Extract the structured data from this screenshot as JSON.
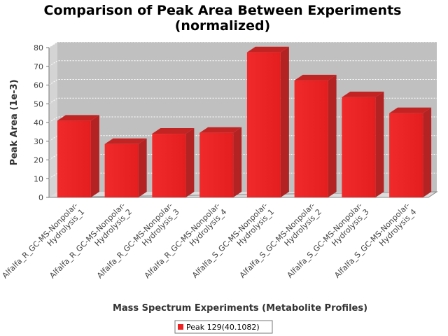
{
  "chart_data": {
    "type": "bar",
    "title": [
      "Comparison of Peak Area Between Experiments",
      "(normalized)"
    ],
    "xlabel": "Mass Spectrum Experiments (Metabolite Profiles)",
    "ylabel": "Peak Area (1e-3)",
    "ylim": [
      0,
      80
    ],
    "yticks": [
      0,
      10,
      20,
      30,
      40,
      50,
      60,
      70,
      80
    ],
    "grid": true,
    "legend_position": "bottom",
    "categories": [
      [
        "Alfalfa_R_GC-MS-Nonpolar-",
        "Hydrolysis_1"
      ],
      [
        "Alfalfa_R_GC-MS-Nonpolar-",
        "Hydrolysis_2"
      ],
      [
        "Alfalfa_R_GC-MS-Nonpolar-",
        "Hydrolysis_3"
      ],
      [
        "Alfalfa_R_GC-MS-Nonpolar-",
        "Hydrolysis_4"
      ],
      [
        "Alfalfa_S_GC-MS-Nonpolar-",
        "Hydrolysis_1"
      ],
      [
        "Alfalfa_S_GC-MS-Nonpolar-",
        "Hydrolysis_2"
      ],
      [
        "Alfalfa_S_GC-MS-Nonpolar-",
        "Hydrolysis_3"
      ],
      [
        "Alfalfa_S_GC-MS-Nonpolar-",
        "Hydrolysis_4"
      ]
    ],
    "series": [
      {
        "name": "Peak 129(40.1082)",
        "color": "#ee2222",
        "values": [
          41.0,
          28.5,
          34.0,
          34.5,
          77.5,
          62.5,
          53.5,
          45.0
        ]
      }
    ]
  }
}
